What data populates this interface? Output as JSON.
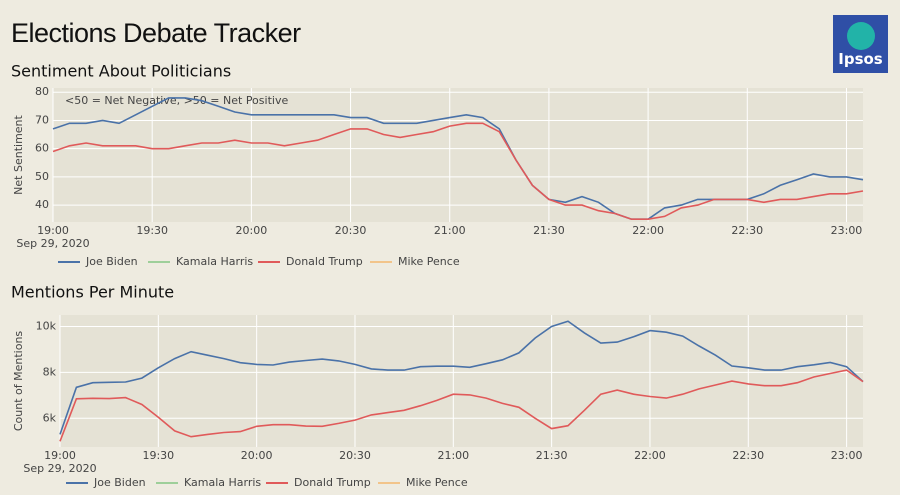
{
  "header": {
    "title": "Elections Debate Tracker",
    "logo_text": "Ipsos"
  },
  "chart_data": [
    {
      "type": "line",
      "title": "Sentiment About Politicians",
      "ylabel": "Net Sentiment",
      "annotation": "<50 = Net Negative, >50 = Net Positive",
      "x": [
        "2020-09-29 19:00",
        "2020-09-29 19:05",
        "2020-09-29 19:10",
        "2020-09-29 19:15",
        "2020-09-29 19:20",
        "2020-09-29 19:25",
        "2020-09-29 19:30",
        "2020-09-29 19:35",
        "2020-09-29 19:40",
        "2020-09-29 19:45",
        "2020-09-29 19:50",
        "2020-09-29 19:55",
        "2020-09-29 20:00",
        "2020-09-29 20:05",
        "2020-09-29 20:10",
        "2020-09-29 20:15",
        "2020-09-29 20:20",
        "2020-09-29 20:25",
        "2020-09-29 20:30",
        "2020-09-29 20:35",
        "2020-09-29 20:40",
        "2020-09-29 20:45",
        "2020-09-29 20:50",
        "2020-09-29 20:55",
        "2020-09-29 21:00",
        "2020-09-29 21:05",
        "2020-09-29 21:10",
        "2020-09-29 21:15",
        "2020-09-29 21:20",
        "2020-09-29 21:25",
        "2020-09-29 21:30",
        "2020-09-29 21:35",
        "2020-09-29 21:40",
        "2020-09-29 21:45",
        "2020-09-29 21:50",
        "2020-09-29 21:55",
        "2020-09-29 22:00",
        "2020-09-29 22:05",
        "2020-09-29 22:10",
        "2020-09-29 22:15",
        "2020-09-29 22:20",
        "2020-09-29 22:25",
        "2020-09-29 22:30",
        "2020-09-29 22:35",
        "2020-09-29 22:40",
        "2020-09-29 22:45",
        "2020-09-29 22:50",
        "2020-09-29 22:55",
        "2020-09-29 23:00",
        "2020-09-29 23:05"
      ],
      "xlim": [
        "2020-09-29 19:00",
        "2020-09-29 23:05"
      ],
      "xticks": [
        {
          "value": "2020-09-29 19:00",
          "label": "19:00\nSep 29, 2020"
        },
        {
          "value": "2020-09-29 19:30",
          "label": "19:30"
        },
        {
          "value": "2020-09-29 20:00",
          "label": "20:00"
        },
        {
          "value": "2020-09-29 20:30",
          "label": "20:30"
        },
        {
          "value": "2020-09-29 21:00",
          "label": "21:00"
        },
        {
          "value": "2020-09-29 21:30",
          "label": "21:30"
        },
        {
          "value": "2020-09-29 22:00",
          "label": "22:00"
        },
        {
          "value": "2020-09-29 22:30",
          "label": "22:30"
        },
        {
          "value": "2020-09-29 23:00",
          "label": "23:00"
        }
      ],
      "ylim": [
        34,
        81.5
      ],
      "yticks": [
        40,
        50,
        60,
        70,
        80
      ],
      "grid": true,
      "legend": "bottom-left",
      "series": [
        {
          "name": "Joe Biden",
          "color": "#4a72a8",
          "values": [
            67,
            69,
            69,
            70,
            69,
            72,
            75,
            78,
            78,
            77,
            75,
            73,
            72,
            72,
            72,
            72,
            72,
            72,
            71,
            71,
            69,
            69,
            69,
            70,
            71,
            72,
            71,
            67,
            56,
            47,
            42,
            41,
            43,
            41,
            37,
            35,
            35,
            39,
            40,
            42,
            42,
            42,
            42,
            44,
            47,
            49,
            51,
            50,
            50,
            49
          ]
        },
        {
          "name": "Kamala Harris",
          "color": "#9ecf9a",
          "values": [
            null,
            null,
            null,
            null,
            null,
            null,
            null,
            null,
            null,
            null,
            null,
            null,
            null,
            null,
            null,
            null,
            null,
            null,
            null,
            null,
            null,
            null,
            null,
            null,
            null,
            null,
            null,
            null,
            null,
            null,
            null,
            null,
            null,
            null,
            null,
            null,
            null,
            null,
            null,
            null,
            null,
            null,
            null,
            null,
            null,
            null,
            null,
            null,
            null,
            null
          ]
        },
        {
          "name": "Donald Trump",
          "color": "#e05a5a",
          "values": [
            59,
            61,
            62,
            61,
            61,
            61,
            60,
            60,
            61,
            62,
            62,
            63,
            62,
            62,
            61,
            62,
            63,
            65,
            67,
            67,
            65,
            64,
            65,
            66,
            68,
            69,
            69,
            66,
            56,
            47,
            42,
            40,
            40,
            38,
            37,
            35,
            35,
            36,
            39,
            40,
            42,
            42,
            42,
            41,
            42,
            42,
            43,
            44,
            44,
            45
          ]
        },
        {
          "name": "Mike Pence",
          "color": "#f2c48a",
          "values": [
            null,
            null,
            null,
            null,
            null,
            null,
            null,
            null,
            null,
            null,
            null,
            null,
            null,
            null,
            null,
            null,
            null,
            null,
            null,
            null,
            null,
            null,
            null,
            null,
            null,
            null,
            null,
            null,
            null,
            null,
            null,
            null,
            null,
            null,
            null,
            null,
            null,
            null,
            null,
            null,
            null,
            null,
            null,
            null,
            null,
            null,
            null,
            null,
            null,
            null
          ]
        }
      ]
    },
    {
      "type": "line",
      "title": "Mentions Per Minute",
      "ylabel": "Count of Mentions",
      "x": [
        "2020-09-29 19:00",
        "2020-09-29 19:05",
        "2020-09-29 19:10",
        "2020-09-29 19:15",
        "2020-09-29 19:20",
        "2020-09-29 19:25",
        "2020-09-29 19:30",
        "2020-09-29 19:35",
        "2020-09-29 19:40",
        "2020-09-29 19:45",
        "2020-09-29 19:50",
        "2020-09-29 19:55",
        "2020-09-29 20:00",
        "2020-09-29 20:05",
        "2020-09-29 20:10",
        "2020-09-29 20:15",
        "2020-09-29 20:20",
        "2020-09-29 20:25",
        "2020-09-29 20:30",
        "2020-09-29 20:35",
        "2020-09-29 20:40",
        "2020-09-29 20:45",
        "2020-09-29 20:50",
        "2020-09-29 20:55",
        "2020-09-29 21:00",
        "2020-09-29 21:05",
        "2020-09-29 21:10",
        "2020-09-29 21:15",
        "2020-09-29 21:20",
        "2020-09-29 21:25",
        "2020-09-29 21:30",
        "2020-09-29 21:35",
        "2020-09-29 21:40",
        "2020-09-29 21:45",
        "2020-09-29 21:50",
        "2020-09-29 21:55",
        "2020-09-29 22:00",
        "2020-09-29 22:05",
        "2020-09-29 22:10",
        "2020-09-29 22:15",
        "2020-09-29 22:20",
        "2020-09-29 22:25",
        "2020-09-29 22:30",
        "2020-09-29 22:35",
        "2020-09-29 22:40",
        "2020-09-29 22:45",
        "2020-09-29 22:50",
        "2020-09-29 22:55",
        "2020-09-29 23:00",
        "2020-09-29 23:05"
      ],
      "xlim": [
        "2020-09-29 19:00",
        "2020-09-29 23:05"
      ],
      "xticks": [
        {
          "value": "2020-09-29 19:00",
          "label": "19:00\nSep 29, 2020"
        },
        {
          "value": "2020-09-29 19:30",
          "label": "19:30"
        },
        {
          "value": "2020-09-29 20:00",
          "label": "20:00"
        },
        {
          "value": "2020-09-29 20:30",
          "label": "20:30"
        },
        {
          "value": "2020-09-29 21:00",
          "label": "21:00"
        },
        {
          "value": "2020-09-29 21:30",
          "label": "21:30"
        },
        {
          "value": "2020-09-29 22:00",
          "label": "22:00"
        },
        {
          "value": "2020-09-29 22:30",
          "label": "22:30"
        },
        {
          "value": "2020-09-29 23:00",
          "label": "23:00"
        }
      ],
      "ylim": [
        4750,
        10500
      ],
      "yticks": [
        {
          "value": 6000,
          "label": "6k"
        },
        {
          "value": 8000,
          "label": "8k"
        },
        {
          "value": 10000,
          "label": "10k"
        }
      ],
      "grid": true,
      "legend": "bottom-left",
      "series": [
        {
          "name": "Joe Biden",
          "color": "#4a72a8",
          "values": [
            5300,
            7350,
            7550,
            7570,
            7580,
            7750,
            8200,
            8600,
            8900,
            8750,
            8600,
            8420,
            8350,
            8320,
            8450,
            8520,
            8580,
            8500,
            8350,
            8150,
            8100,
            8100,
            8250,
            8270,
            8270,
            8220,
            8380,
            8550,
            8850,
            9500,
            10000,
            10230,
            9720,
            9280,
            9320,
            9550,
            9820,
            9750,
            9580,
            9150,
            8750,
            8280,
            8200,
            8100,
            8100,
            8250,
            8330,
            8430,
            8250,
            7600
          ]
        },
        {
          "name": "Kamala Harris",
          "color": "#9ecf9a",
          "values": [
            null,
            null,
            null,
            null,
            null,
            null,
            null,
            null,
            null,
            null,
            null,
            null,
            null,
            null,
            null,
            null,
            null,
            null,
            null,
            null,
            null,
            null,
            null,
            null,
            null,
            null,
            null,
            null,
            null,
            null,
            null,
            null,
            null,
            null,
            null,
            null,
            null,
            null,
            null,
            null,
            null,
            null,
            null,
            null,
            null,
            null,
            null,
            null,
            null,
            null
          ]
        },
        {
          "name": "Donald Trump",
          "color": "#e05a5a",
          "values": [
            5000,
            6850,
            6870,
            6860,
            6900,
            6600,
            6050,
            5450,
            5200,
            5300,
            5380,
            5420,
            5650,
            5720,
            5720,
            5660,
            5650,
            5780,
            5920,
            6150,
            6250,
            6350,
            6550,
            6780,
            7050,
            7020,
            6880,
            6650,
            6480,
            6000,
            5550,
            5680,
            6350,
            7050,
            7230,
            7050,
            6950,
            6880,
            7050,
            7280,
            7450,
            7620,
            7500,
            7420,
            7420,
            7550,
            7800,
            7950,
            8100,
            7600
          ]
        },
        {
          "name": "Mike Pence",
          "color": "#f2c48a",
          "values": [
            null,
            null,
            null,
            null,
            null,
            null,
            null,
            null,
            null,
            null,
            null,
            null,
            null,
            null,
            null,
            null,
            null,
            null,
            null,
            null,
            null,
            null,
            null,
            null,
            null,
            null,
            null,
            null,
            null,
            null,
            null,
            null,
            null,
            null,
            null,
            null,
            null,
            null,
            null,
            null,
            null,
            null,
            null,
            null,
            null,
            null,
            null,
            null,
            null,
            null
          ]
        }
      ]
    }
  ]
}
